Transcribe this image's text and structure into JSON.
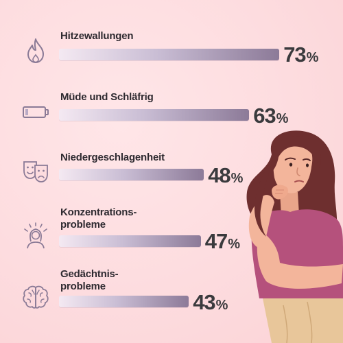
{
  "chart_data": {
    "type": "bar",
    "orientation": "horizontal",
    "categories": [
      "Hitzewallungen",
      "Müde und Schläfrig",
      "Niedergeschlagenheit",
      "Konzentrations-\nprobleme",
      "Gedächtnis-\nprobleme"
    ],
    "values": [
      73,
      63,
      48,
      47,
      43
    ],
    "value_unit": "%",
    "icons": [
      "flame-icon",
      "battery-icon",
      "theater-masks-icon",
      "stressed-head-icon",
      "brain-icon"
    ],
    "bar_gradient": [
      "#f4e9f2",
      "#c9bdd4",
      "#8c7a98"
    ],
    "title": "",
    "xlabel": "",
    "ylabel": "",
    "xlim": [
      0,
      100
    ],
    "grid": false,
    "legend": "none"
  },
  "colors": {
    "background": "#fddcdf",
    "icon_stroke": "#8a7a96",
    "text": "#2e2a30",
    "shirt": "#b5517c",
    "skin": "#f3b59b",
    "hair": "#6e2f2f"
  }
}
